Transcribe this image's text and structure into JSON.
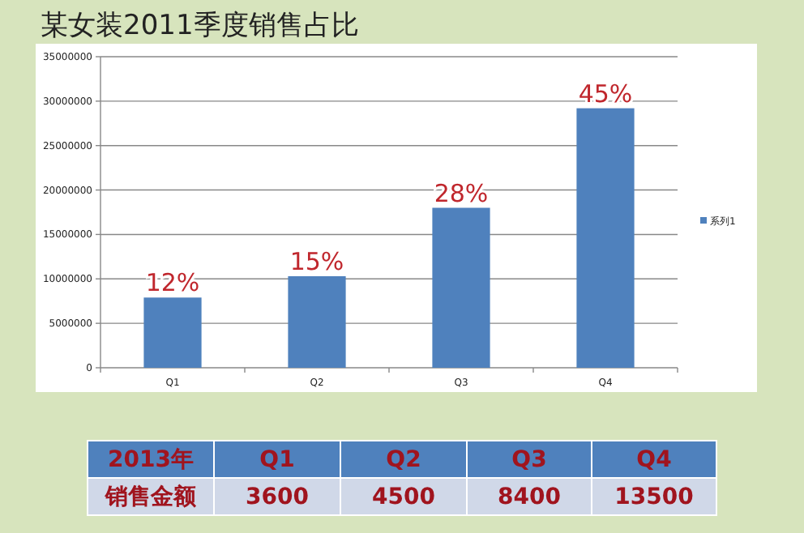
{
  "chart_data": {
    "type": "bar",
    "title": "某女装2011季度销售占比",
    "categories": [
      "Q1",
      "Q2",
      "Q3",
      "Q4"
    ],
    "series": [
      {
        "name": "系列1",
        "color": "#4f81bd",
        "values": [
          7900000,
          10300000,
          18000000,
          29200000
        ]
      }
    ],
    "ylim": [
      0,
      35000000
    ],
    "yticks": [
      0,
      5000000,
      10000000,
      15000000,
      20000000,
      25000000,
      30000000,
      35000000
    ],
    "grid": "y",
    "legend": "right",
    "annotations": [
      {
        "text": "12%",
        "x": "Q1",
        "y": 7900000
      },
      {
        "text": "15%",
        "x": "Q2",
        "y": 10300000
      },
      {
        "text": "28%",
        "x": "Q3",
        "y": 18000000
      },
      {
        "text": "45%",
        "x": "Q4",
        "y": 29200000
      },
      "2013年",
      "Q1",
      "Q2",
      "Q3",
      "Q4",
      "销售金额",
      "3600",
      "4500",
      "8400",
      "13500"
    ]
  }
}
